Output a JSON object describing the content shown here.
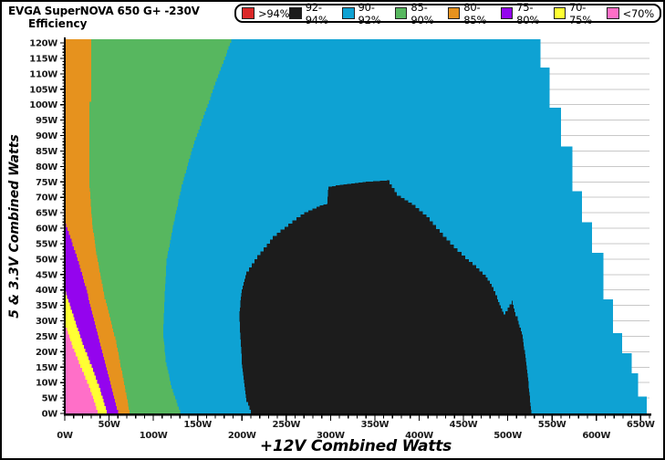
{
  "title": {
    "line1": "EVGA SuperNOVA 650 G+ -230V",
    "line2": "Efficiency"
  },
  "legend": {
    "items": [
      {
        "label": ">94%",
        "color": "#DB2828"
      },
      {
        "label": "92-94%",
        "color": "#1C1C1C"
      },
      {
        "label": "90-92%",
        "color": "#0EA2D3"
      },
      {
        "label": "85-90%",
        "color": "#57B75F"
      },
      {
        "label": "80-85%",
        "color": "#E6921E"
      },
      {
        "label": "75-80%",
        "color": "#9404EE"
      },
      {
        "label": "70-75%",
        "color": "#FFFF33"
      },
      {
        "label": "<70%",
        "color": "#FF6FC8"
      }
    ]
  },
  "chart_data": {
    "type": "heatmap",
    "subtype": "filled-efficiency-contour",
    "title": "EVGA SuperNOVA 650 G+ -230V Efficiency",
    "xlabel": "+12V Combined Watts",
    "ylabel": "5 & 3.3V Combined Watts",
    "xlim": [
      0,
      660
    ],
    "ylim": [
      0,
      121.2
    ],
    "grid": {
      "horizontal_step": 5,
      "color": "#C8C8C8",
      "vertical": false
    },
    "x_ticks": {
      "values": [
        0,
        50,
        100,
        150,
        200,
        250,
        300,
        350,
        400,
        450,
        500,
        550,
        600,
        650
      ],
      "labels": [
        "0W",
        "50W",
        "100W",
        "150W",
        "200W",
        "250W",
        "300W",
        "350W",
        "400W",
        "450W",
        "500W",
        "550W",
        "600W",
        "650W"
      ],
      "minor_step": 10,
      "stagger": "labels alternate between upper (odd 50s) and lower (even 100s) rows"
    },
    "y_ticks": {
      "values": [
        0,
        5,
        10,
        15,
        20,
        25,
        30,
        35,
        40,
        45,
        50,
        55,
        60,
        65,
        70,
        75,
        80,
        85,
        90,
        95,
        100,
        105,
        110,
        115,
        120
      ],
      "labels": [
        "0W",
        "5W",
        "10W",
        "15W",
        "20W",
        "25W",
        "30W",
        "35W",
        "40W",
        "45W",
        "50W",
        "55W",
        "60W",
        "65W",
        "70W",
        "75W",
        "80W",
        "85W",
        "90W",
        "95W",
        "100W",
        "105W",
        "110W",
        "115W",
        "120W"
      ],
      "minor_step": 1
    },
    "regions": [
      {
        "name": "90-92%",
        "color": "#0EA2D3",
        "polygon": [
          [
            0,
            0
          ],
          [
            0,
            121.2
          ],
          [
            537,
            121.2
          ],
          [
            537,
            112
          ],
          [
            547,
            112
          ],
          [
            547,
            99
          ],
          [
            560,
            99
          ],
          [
            560,
            86.5
          ],
          [
            573,
            86.5
          ],
          [
            573,
            72
          ],
          [
            584,
            72
          ],
          [
            584,
            62
          ],
          [
            595,
            62
          ],
          [
            595,
            52
          ],
          [
            608,
            52
          ],
          [
            608,
            37
          ],
          [
            619,
            37
          ],
          [
            619,
            26
          ],
          [
            629,
            26
          ],
          [
            629,
            19.5
          ],
          [
            640,
            19.5
          ],
          [
            640,
            13
          ],
          [
            647,
            13
          ],
          [
            647,
            5.5
          ],
          [
            657,
            5.5
          ],
          [
            657,
            0
          ]
        ]
      },
      {
        "name": "85-90%",
        "color": "#57B75F",
        "polygon": [
          [
            0,
            0
          ],
          [
            0,
            121.2
          ],
          [
            189.5,
            121.2
          ],
          [
            176,
            111
          ],
          [
            161,
            99
          ],
          [
            145,
            86
          ],
          [
            132,
            73
          ],
          [
            123,
            61
          ],
          [
            115,
            49
          ],
          [
            112.5,
            36
          ],
          [
            111,
            25.5
          ],
          [
            114,
            16.5
          ],
          [
            120.5,
            8
          ],
          [
            130,
            0
          ]
        ]
      },
      {
        "name": "80-85%",
        "color": "#E6921E",
        "polygon": [
          [
            0,
            0
          ],
          [
            0,
            121.2
          ],
          [
            30,
            121.2
          ],
          [
            30,
            101
          ],
          [
            28,
            101
          ],
          [
            28,
            73
          ],
          [
            31,
            61
          ],
          [
            35,
            52.5
          ],
          [
            40,
            44.5
          ],
          [
            45,
            37
          ],
          [
            51.5,
            30
          ],
          [
            58,
            22.5
          ],
          [
            63,
            15
          ],
          [
            68,
            8
          ],
          [
            73,
            0
          ]
        ]
      },
      {
        "name": "75-80%",
        "color": "#9404EE",
        "polygon": [
          [
            0,
            0
          ],
          [
            0,
            61.5
          ],
          [
            13.5,
            50.5
          ],
          [
            24,
            40
          ],
          [
            32,
            31
          ],
          [
            42,
            19.5
          ],
          [
            50.5,
            10.5
          ],
          [
            60,
            0
          ]
        ]
      },
      {
        "name": "70-75%",
        "color": "#FFFF33",
        "polygon": [
          [
            0,
            0
          ],
          [
            0,
            39.5
          ],
          [
            11,
            30
          ],
          [
            21.5,
            21
          ],
          [
            32,
            13.5
          ],
          [
            40,
            7
          ],
          [
            47.5,
            0
          ]
        ]
      },
      {
        "name": "<70%",
        "color": "#FF6FC8",
        "polygon": [
          [
            0,
            0
          ],
          [
            0,
            29
          ],
          [
            9,
            21
          ],
          [
            19.5,
            13.5
          ],
          [
            29,
            7
          ],
          [
            37,
            0
          ]
        ]
      },
      {
        "name": "92-94%",
        "color": "#1C1C1C",
        "polygon": [
          [
            212,
            0
          ],
          [
            205,
            5
          ],
          [
            200,
            17
          ],
          [
            197,
            32
          ],
          [
            199,
            39
          ],
          [
            205,
            46
          ],
          [
            214,
            50
          ],
          [
            235,
            57.5
          ],
          [
            248,
            60.5
          ],
          [
            266,
            64.5
          ],
          [
            284,
            67
          ],
          [
            296,
            68
          ],
          [
            297.5,
            73.5
          ],
          [
            336,
            75
          ],
          [
            363.5,
            75.5
          ],
          [
            375,
            70.5
          ],
          [
            392,
            67.5
          ],
          [
            408,
            63.5
          ],
          [
            423,
            58.5
          ],
          [
            439,
            53.5
          ],
          [
            452,
            50
          ],
          [
            464.5,
            47
          ],
          [
            475,
            44
          ],
          [
            482,
            41
          ],
          [
            488,
            37
          ],
          [
            492,
            34
          ],
          [
            495,
            32
          ],
          [
            504.5,
            36.5
          ],
          [
            508.5,
            31.5
          ],
          [
            511,
            30
          ],
          [
            516,
            25.5
          ],
          [
            520,
            18
          ],
          [
            523,
            10.5
          ],
          [
            526.5,
            0
          ]
        ]
      }
    ],
    "notes": "Region >94% (red) appears in legend only; white stepped area at right is outside measured range"
  }
}
